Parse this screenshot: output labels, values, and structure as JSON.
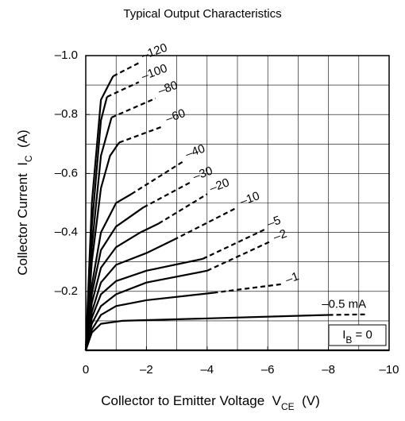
{
  "chart_data": {
    "type": "line",
    "title": "Typical Output Characteristics",
    "xlabel": [
      "Collector to Emitter Voltage  V",
      "CE",
      "  (V)"
    ],
    "ylabel": [
      "Collector Current  I",
      "C",
      "  (A)"
    ],
    "color": "#000000",
    "xlim": [
      0,
      -10
    ],
    "ylim": [
      0,
      -1.0
    ],
    "xticks": [
      0,
      {
        "value": -2,
        "label": "–2"
      },
      {
        "value": -4,
        "label": "–4"
      },
      {
        "value": -6,
        "label": "–6"
      },
      {
        "value": -8,
        "label": "–8"
      },
      {
        "value": -10,
        "label": "–10"
      }
    ],
    "yticks": [
      {
        "value": -0.2,
        "label": "–0.2"
      },
      {
        "value": -0.4,
        "label": "–0.4"
      },
      {
        "value": -0.6,
        "label": "–0.6"
      },
      {
        "value": -0.8,
        "label": "–0.8"
      },
      {
        "value": -1.0,
        "label": "–1.0"
      }
    ],
    "xgrid": [
      -1,
      -2,
      -3,
      -4,
      -5,
      -6,
      -7,
      -8,
      -9
    ],
    "ygrid": [
      -0.1,
      -0.2,
      -0.3,
      -0.4,
      -0.5,
      -0.6,
      -0.7,
      -0.8,
      -0.9
    ],
    "grid": true,
    "series": [
      {
        "name": "–120",
        "x": [
          0,
          -0.2,
          -0.5,
          -0.9
        ],
        "values": [
          0,
          -0.5,
          -0.85,
          -0.93
        ],
        "dashed_x": [
          -0.9,
          -1.75
        ],
        "dashed_values": [
          -0.93,
          -0.975
        ]
      },
      {
        "name": "–100",
        "x": [
          0,
          -0.2,
          -0.5,
          -0.7
        ],
        "values": [
          0,
          -0.42,
          -0.78,
          -0.86
        ],
        "dashed_x": [
          -0.7,
          -1.75
        ],
        "dashed_values": [
          -0.86,
          -0.91
        ]
      },
      {
        "name": "–80",
        "x": [
          0,
          -0.2,
          -0.5,
          -0.85
        ],
        "values": [
          0,
          -0.35,
          -0.66,
          -0.79
        ],
        "dashed_x": [
          -0.85,
          -2.3
        ],
        "dashed_values": [
          -0.79,
          -0.855
        ]
      },
      {
        "name": "–60",
        "x": [
          0,
          -0.2,
          -0.5,
          -0.8,
          -1.1
        ],
        "values": [
          0,
          -0.3,
          -0.55,
          -0.66,
          -0.705
        ],
        "dashed_x": [
          -1.1,
          -2.55
        ],
        "dashed_values": [
          -0.705,
          -0.76
        ]
      },
      {
        "name": "–40",
        "x": [
          0,
          -0.2,
          -0.5,
          -1,
          -1.5
        ],
        "values": [
          0,
          -0.22,
          -0.4,
          -0.5,
          -0.53
        ],
        "dashed_x": [
          -1.5,
          -3.2
        ],
        "dashed_values": [
          -0.53,
          -0.64
        ]
      },
      {
        "name": "–30",
        "x": [
          0,
          -0.2,
          -0.5,
          -1,
          -1.9
        ],
        "values": [
          0,
          -0.19,
          -0.34,
          -0.42,
          -0.485
        ],
        "dashed_x": [
          -1.9,
          -3.45
        ],
        "dashed_values": [
          -0.485,
          -0.57
        ]
      },
      {
        "name": "–20",
        "x": [
          0,
          -0.2,
          -0.5,
          -1,
          -1.8,
          -2.4
        ],
        "values": [
          0,
          -0.16,
          -0.28,
          -0.35,
          -0.4,
          -0.43
        ],
        "dashed_x": [
          -2.4,
          -4.0
        ],
        "dashed_values": [
          -0.43,
          -0.53
        ]
      },
      {
        "name": "–10",
        "x": [
          0,
          -0.2,
          -0.5,
          -1,
          -2,
          -2.9
        ],
        "values": [
          0,
          -0.13,
          -0.23,
          -0.29,
          -0.33,
          -0.375
        ],
        "dashed_x": [
          -2.9,
          -5.0
        ],
        "dashed_values": [
          -0.375,
          -0.485
        ]
      },
      {
        "name": "–5",
        "x": [
          0,
          -0.2,
          -0.5,
          -1,
          -2,
          -3.85
        ],
        "values": [
          0,
          -0.11,
          -0.19,
          -0.235,
          -0.27,
          -0.31
        ],
        "dashed_x": [
          -3.85,
          -5.9
        ],
        "dashed_values": [
          -0.31,
          -0.41
        ]
      },
      {
        "name": "–2",
        "x": [
          0,
          -0.2,
          -0.5,
          -1,
          -2,
          -4
        ],
        "values": [
          0,
          -0.09,
          -0.15,
          -0.19,
          -0.23,
          -0.27
        ],
        "dashed_x": [
          -4,
          -6.1
        ],
        "dashed_values": [
          -0.27,
          -0.37
        ]
      },
      {
        "name": "–1",
        "x": [
          0,
          -0.2,
          -0.5,
          -1,
          -2,
          -4.2
        ],
        "values": [
          0,
          -0.07,
          -0.12,
          -0.15,
          -0.17,
          -0.195
        ],
        "dashed_x": [
          -4.2,
          -6.5
        ],
        "dashed_values": [
          -0.195,
          -0.225
        ]
      },
      {
        "name": "–0.5 mA",
        "x": [
          0,
          -0.2,
          -0.5,
          -1.2,
          -8
        ],
        "values": [
          0,
          -0.06,
          -0.09,
          -0.1,
          -0.12
        ],
        "dashed_x": [
          -8,
          -9.3
        ],
        "dashed_values": [
          -0.12,
          -0.122
        ]
      },
      {
        "name": [
          "I",
          "B",
          " = 0"
        ],
        "x": [
          0,
          -10
        ],
        "values": [
          0,
          0
        ],
        "dashed_x": [],
        "dashed_values": []
      }
    ]
  }
}
